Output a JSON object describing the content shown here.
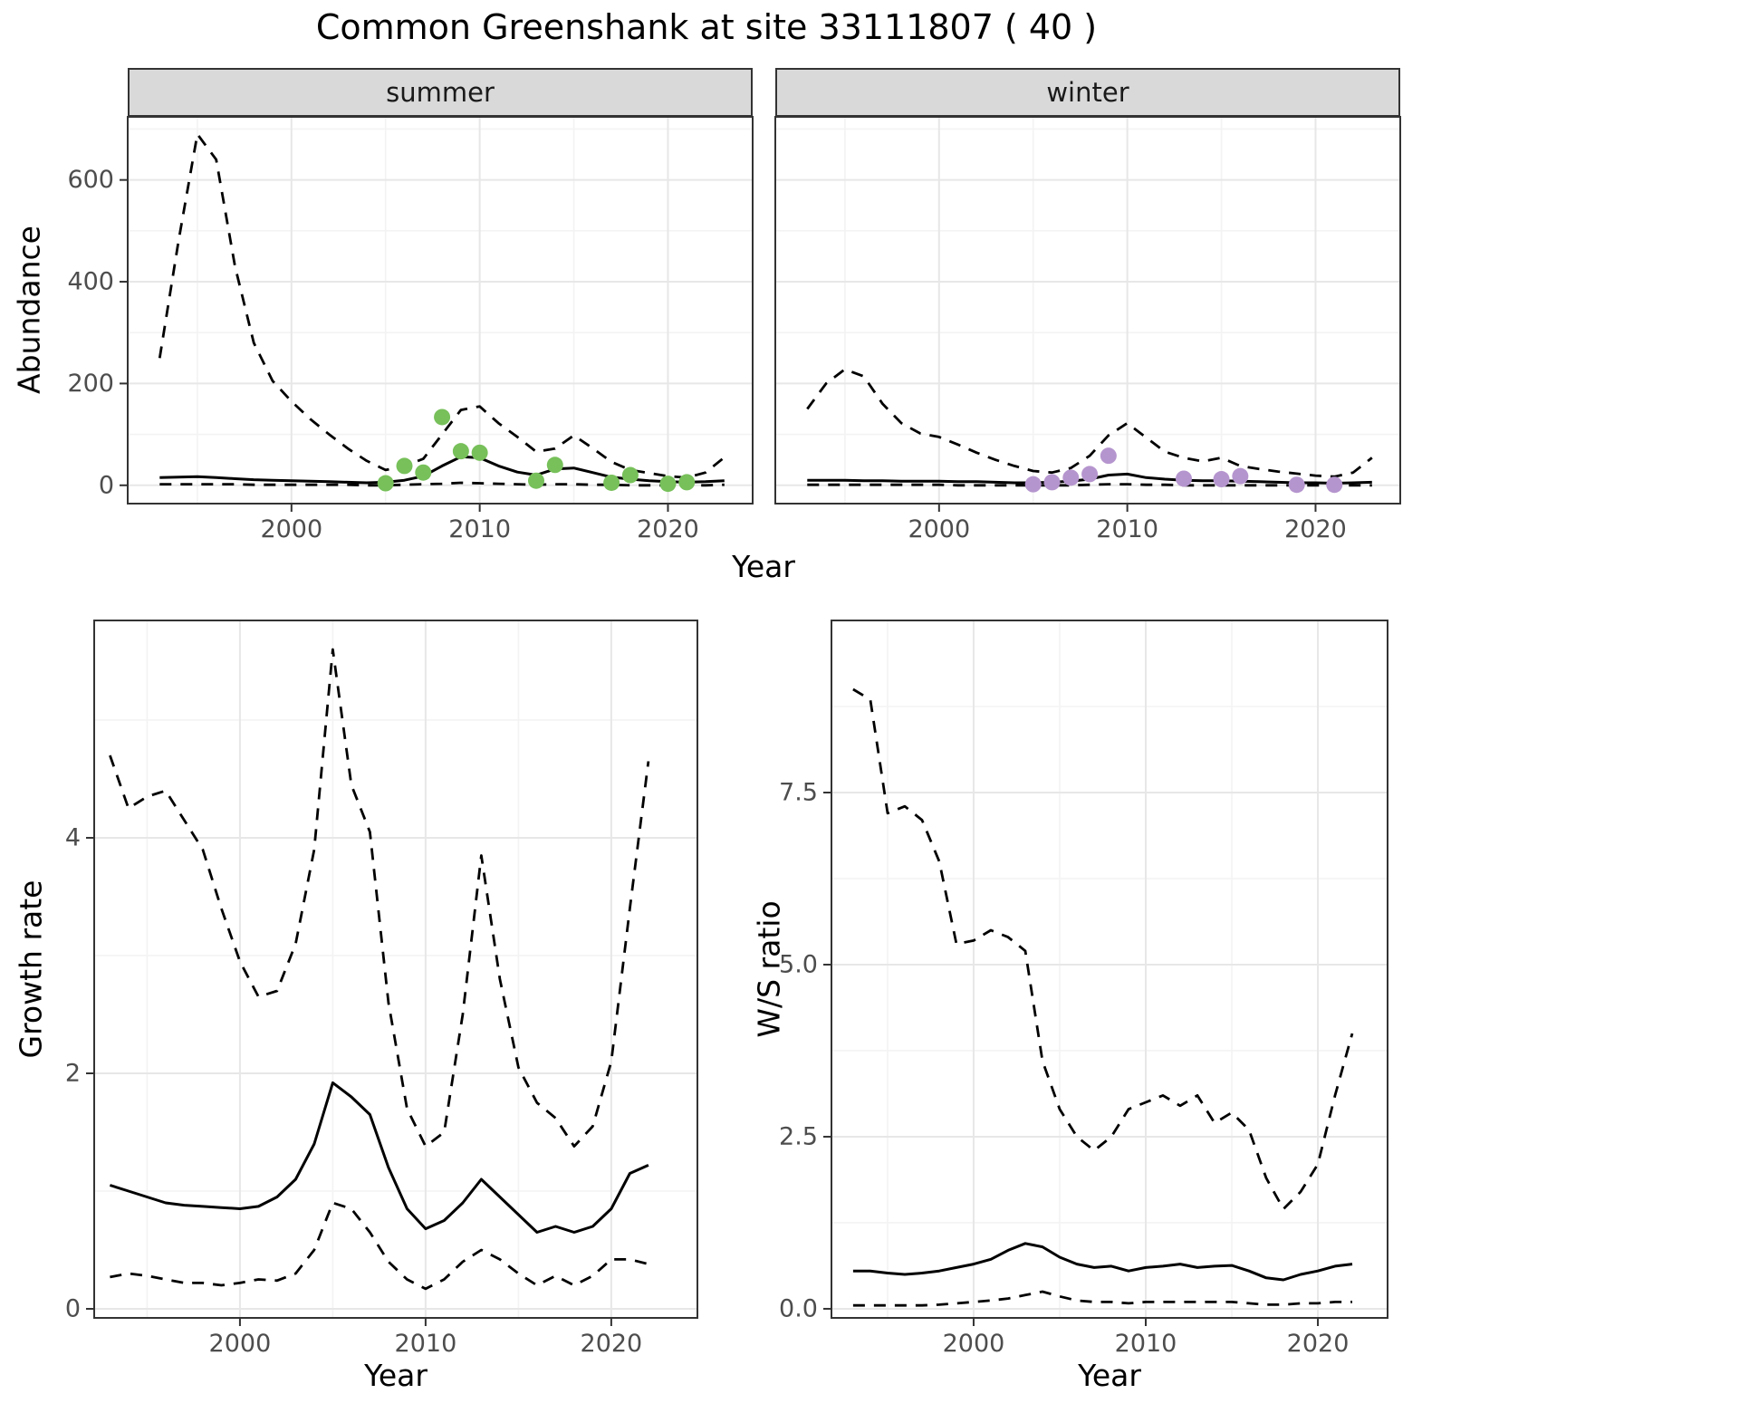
{
  "title": "Common Greenshank at site 33111807 ( 40 )",
  "facets": [
    "summer",
    "winter"
  ],
  "axes": {
    "abundance_label": "Abundance",
    "year_label": "Year",
    "growth_label": "Growth rate",
    "ws_label": "W/S ratio"
  },
  "colors": {
    "summer_points": "#77C05A",
    "winter_points": "#B595CE",
    "line": "#000000",
    "strip_bg": "#D9D9D9",
    "strip_text": "#1a1a1a",
    "grid_major": "#E7E7E7",
    "grid_minor": "#F3F3F3",
    "panel_border": "#333333",
    "tick_text": "#4D4D4D"
  },
  "chart_data": [
    {
      "id": "abundance_summer",
      "type": "line",
      "facet": "summer",
      "title": "",
      "xlabel": "Year",
      "ylabel": "Abundance",
      "xlim": [
        1991.3,
        2024.5
      ],
      "ylim": [
        -36,
        724
      ],
      "xticks": [
        2000,
        2010,
        2020
      ],
      "xtick_labels": [
        "2000",
        "2010",
        "2020"
      ],
      "yticks": [
        0,
        200,
        400,
        600
      ],
      "ytick_labels": [
        "0",
        "200",
        "400",
        "600"
      ],
      "grid": true,
      "legend": "none",
      "x": [
        1993,
        1994,
        1995,
        1996,
        1997,
        1998,
        1999,
        2000,
        2001,
        2002,
        2003,
        2004,
        2005,
        2006,
        2007,
        2008,
        2009,
        2010,
        2011,
        2012,
        2013,
        2014,
        2015,
        2016,
        2017,
        2018,
        2019,
        2020,
        2021,
        2022,
        2023
      ],
      "series": [
        {
          "name": "upper_ci",
          "style": "dashed",
          "y": [
            250,
            480,
            690,
            640,
            430,
            280,
            205,
            165,
            130,
            100,
            72,
            48,
            30,
            38,
            52,
            100,
            148,
            155,
            122,
            95,
            66,
            72,
            98,
            73,
            46,
            30,
            24,
            18,
            15,
            25,
            55
          ]
        },
        {
          "name": "mean",
          "style": "solid",
          "y": [
            15,
            16,
            17,
            15,
            13,
            11,
            10,
            9,
            8,
            7,
            6,
            5,
            6,
            10,
            18,
            38,
            56,
            54,
            38,
            26,
            20,
            32,
            34,
            25,
            16,
            12,
            9,
            7,
            6,
            7,
            9
          ]
        },
        {
          "name": "lower_ci",
          "style": "dashed",
          "y": [
            2,
            2,
            2,
            2,
            2,
            1,
            1,
            1,
            1,
            1,
            1,
            0,
            0,
            1,
            2,
            3,
            5,
            4,
            3,
            2,
            1,
            2,
            2,
            1,
            1,
            0,
            0,
            0,
            0,
            0,
            1
          ]
        },
        {
          "name": "observed_counts",
          "style": "points",
          "color_key": "summer_points",
          "x": [
            2005,
            2006,
            2007,
            2008,
            2009,
            2010,
            2013,
            2014,
            2017,
            2018,
            2020,
            2021
          ],
          "y": [
            4,
            38,
            25,
            134,
            67,
            64,
            9,
            40,
            5,
            20,
            3,
            6
          ]
        }
      ]
    },
    {
      "id": "abundance_winter",
      "type": "line",
      "facet": "winter",
      "title": "",
      "xlabel": "Year",
      "ylabel": "Abundance",
      "xlim": [
        1991.3,
        2024.5
      ],
      "ylim": [
        -36,
        724
      ],
      "xticks": [
        2000,
        2010,
        2020
      ],
      "xtick_labels": [
        "2000",
        "2010",
        "2020"
      ],
      "yticks": [
        0,
        200,
        400,
        600
      ],
      "ytick_labels": [
        "0",
        "200",
        "400",
        "600"
      ],
      "grid": true,
      "legend": "none",
      "x": [
        1993,
        1994,
        1995,
        1996,
        1997,
        1998,
        1999,
        2000,
        2001,
        2002,
        2003,
        2004,
        2005,
        2006,
        2007,
        2008,
        2009,
        2010,
        2011,
        2012,
        2013,
        2014,
        2015,
        2016,
        2017,
        2018,
        2019,
        2020,
        2021,
        2022,
        2023
      ],
      "series": [
        {
          "name": "upper_ci",
          "style": "dashed",
          "y": [
            150,
            200,
            228,
            214,
            160,
            122,
            102,
            95,
            80,
            64,
            50,
            38,
            28,
            25,
            34,
            58,
            98,
            122,
            94,
            66,
            54,
            47,
            54,
            38,
            32,
            27,
            23,
            19,
            17,
            25,
            54
          ]
        },
        {
          "name": "mean",
          "style": "solid",
          "y": [
            10,
            10,
            10,
            9,
            9,
            8,
            8,
            8,
            7,
            7,
            6,
            5,
            5,
            6,
            8,
            12,
            20,
            22,
            15,
            12,
            10,
            9,
            9,
            8,
            7,
            6,
            5,
            5,
            4,
            5,
            6
          ]
        },
        {
          "name": "lower_ci",
          "style": "dashed",
          "y": [
            1,
            1,
            1,
            1,
            1,
            1,
            1,
            1,
            0,
            0,
            0,
            0,
            0,
            0,
            0,
            1,
            2,
            2,
            1,
            1,
            0,
            0,
            0,
            0,
            0,
            0,
            0,
            0,
            0,
            0,
            0
          ]
        },
        {
          "name": "observed_counts",
          "style": "points",
          "color_key": "winter_points",
          "x": [
            2005,
            2006,
            2007,
            2008,
            2009,
            2013,
            2015,
            2016,
            2019,
            2021
          ],
          "y": [
            2,
            6,
            15,
            22,
            58,
            13,
            12,
            18,
            1,
            1
          ]
        }
      ]
    },
    {
      "id": "growth",
      "type": "line",
      "facet": "",
      "title": "",
      "xlabel": "Year",
      "ylabel": "Growth rate",
      "xlim": [
        1992.15,
        2024.64
      ],
      "ylim": [
        -0.077,
        5.846
      ],
      "xticks": [
        2000,
        2010,
        2020
      ],
      "xtick_labels": [
        "2000",
        "2010",
        "2020"
      ],
      "yticks": [
        0,
        2,
        4
      ],
      "ytick_labels": [
        "0",
        "2",
        "4"
      ],
      "grid": true,
      "legend": "none",
      "x": [
        1993,
        1994,
        1995,
        1996,
        1997,
        1998,
        1999,
        2000,
        2001,
        2002,
        2003,
        2004,
        2005,
        2006,
        2007,
        2008,
        2009,
        2010,
        2011,
        2012,
        2013,
        2014,
        2015,
        2016,
        2017,
        2018,
        2019,
        2020,
        2021,
        2022
      ],
      "series": [
        {
          "name": "upper_ci",
          "style": "dashed",
          "y": [
            4.7,
            4.25,
            4.35,
            4.4,
            4.15,
            3.9,
            3.4,
            2.95,
            2.65,
            2.7,
            3.1,
            3.9,
            5.6,
            4.45,
            4.05,
            2.6,
            1.7,
            1.38,
            1.5,
            2.5,
            3.85,
            2.8,
            2.05,
            1.75,
            1.62,
            1.38,
            1.55,
            2.1,
            3.4,
            4.65
          ]
        },
        {
          "name": "mean",
          "style": "solid",
          "y": [
            1.05,
            1.0,
            0.95,
            0.9,
            0.88,
            0.87,
            0.86,
            0.85,
            0.87,
            0.95,
            1.1,
            1.4,
            1.92,
            1.8,
            1.65,
            1.2,
            0.85,
            0.68,
            0.75,
            0.9,
            1.1,
            0.95,
            0.8,
            0.65,
            0.7,
            0.65,
            0.7,
            0.85,
            1.15,
            1.22
          ]
        },
        {
          "name": "lower_ci",
          "style": "dashed",
          "y": [
            0.27,
            0.3,
            0.28,
            0.25,
            0.22,
            0.22,
            0.2,
            0.22,
            0.25,
            0.24,
            0.3,
            0.5,
            0.9,
            0.85,
            0.65,
            0.4,
            0.25,
            0.17,
            0.25,
            0.4,
            0.5,
            0.42,
            0.3,
            0.2,
            0.28,
            0.2,
            0.28,
            0.42,
            0.42,
            0.38
          ]
        }
      ]
    },
    {
      "id": "ws_ratio",
      "type": "line",
      "facet": "",
      "title": "",
      "xlabel": "Year",
      "ylabel": "W/S ratio",
      "xlim": [
        1991.74,
        2024.05
      ],
      "ylim": [
        -0.132,
        10.0
      ],
      "xticks": [
        2000,
        2010,
        2020
      ],
      "xtick_labels": [
        "2000",
        "2010",
        "2020"
      ],
      "yticks": [
        0,
        2.5,
        5.0,
        7.5
      ],
      "ytick_labels": [
        "0.0",
        "2.5",
        "5.0",
        "7.5"
      ],
      "grid": true,
      "legend": "none",
      "x": [
        1993,
        1994,
        1995,
        1996,
        1997,
        1998,
        1999,
        2000,
        2001,
        2002,
        2003,
        2004,
        2005,
        2006,
        2007,
        2008,
        2009,
        2010,
        2011,
        2012,
        2013,
        2014,
        2015,
        2016,
        2017,
        2018,
        2019,
        2020,
        2021,
        2022
      ],
      "series": [
        {
          "name": "upper_ci",
          "style": "dashed",
          "y": [
            9.0,
            8.85,
            7.2,
            7.3,
            7.1,
            6.5,
            5.3,
            5.35,
            5.5,
            5.4,
            5.2,
            3.6,
            2.9,
            2.5,
            2.3,
            2.5,
            2.9,
            3.0,
            3.1,
            2.95,
            3.1,
            2.7,
            2.85,
            2.6,
            1.9,
            1.45,
            1.7,
            2.1,
            3.1,
            4.0
          ]
        },
        {
          "name": "mean",
          "style": "solid",
          "y": [
            0.55,
            0.55,
            0.52,
            0.5,
            0.52,
            0.55,
            0.6,
            0.65,
            0.72,
            0.85,
            0.95,
            0.9,
            0.75,
            0.65,
            0.6,
            0.62,
            0.55,
            0.6,
            0.62,
            0.65,
            0.6,
            0.62,
            0.63,
            0.55,
            0.45,
            0.42,
            0.5,
            0.55,
            0.62,
            0.65
          ]
        },
        {
          "name": "lower_ci",
          "style": "dashed",
          "y": [
            0.05,
            0.05,
            0.05,
            0.05,
            0.05,
            0.06,
            0.08,
            0.1,
            0.12,
            0.15,
            0.2,
            0.25,
            0.18,
            0.12,
            0.1,
            0.1,
            0.08,
            0.1,
            0.1,
            0.1,
            0.1,
            0.1,
            0.1,
            0.08,
            0.06,
            0.06,
            0.08,
            0.08,
            0.1,
            0.1
          ]
        }
      ]
    }
  ]
}
